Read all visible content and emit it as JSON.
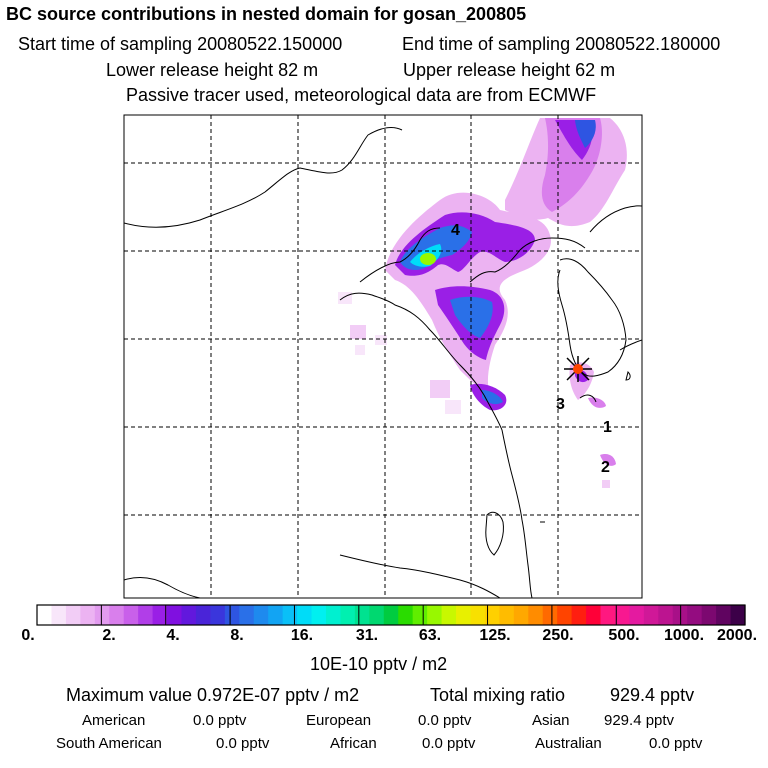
{
  "header": {
    "title": "BC  source contributions in nested domain for gosan_200805",
    "start_time": "Start time of sampling 20080522.150000",
    "end_time": "End time of sampling 20080522.180000",
    "lower_release": "Lower release height   82 m",
    "upper_release": "Upper release height   62 m",
    "tracer_note": "Passive tracer used, meteorological data are from ECMWF"
  },
  "map": {
    "site_labels": [
      "1",
      "2",
      "3",
      "4"
    ],
    "receptor": "gosan"
  },
  "colorbar": {
    "ticks": [
      "0.",
      "2.",
      "4.",
      "8.",
      "16.",
      "31.",
      "63.",
      "125.",
      "250.",
      "500.",
      "1000.",
      "2000."
    ],
    "unit": "10E-10 pptv / m2",
    "colors": [
      "#ffffff",
      "#f8e6fa",
      "#f2cdf6",
      "#ecb3f2",
      "#e29bef",
      "#d97fec",
      "#c960ea",
      "#b13ee8",
      "#9a1fe6",
      "#8010e0",
      "#6218dd",
      "#4a24d8",
      "#3a36dc",
      "#2e55e2",
      "#2a70e8",
      "#1e8aee",
      "#12a4f3",
      "#0ac0f7",
      "#00dcf8",
      "#00f0f0",
      "#00f0d0",
      "#00f0b0",
      "#00e290",
      "#00d870",
      "#00cc40",
      "#2adc00",
      "#60ee00",
      "#98f800",
      "#c8f800",
      "#e8f000",
      "#f8e000",
      "#ffd000",
      "#ffbc00",
      "#ffa800",
      "#ff8c00",
      "#ff6a00",
      "#ff4400",
      "#ff1e10",
      "#ff0038",
      "#ff1880",
      "#f81890",
      "#e41aa0",
      "#d01898",
      "#bc1490",
      "#a81088",
      "#940c80",
      "#7c0870",
      "#600460",
      "#3c0048"
    ]
  },
  "summary": {
    "max_value": "Maximum value  0.972E-07 pptv / m2",
    "total_label": "Total mixing ratio",
    "total_value": "929.4 pptv",
    "regions": [
      {
        "name": "American",
        "value": "0.0 pptv"
      },
      {
        "name": "European",
        "value": "0.0 pptv"
      },
      {
        "name": "Asian",
        "value": "929.4 pptv"
      },
      {
        "name": "South American",
        "value": "0.0 pptv"
      },
      {
        "name": "African",
        "value": "0.0 pptv"
      },
      {
        "name": "Australian",
        "value": "0.0 pptv"
      }
    ]
  }
}
